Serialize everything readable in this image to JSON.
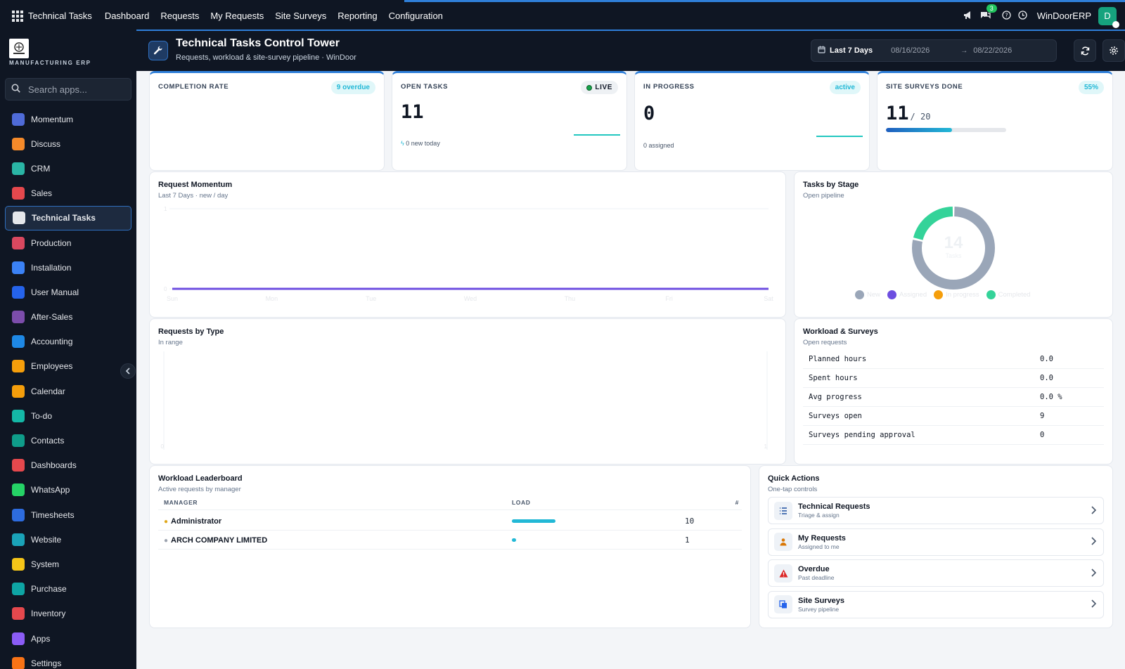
{
  "topbar": {
    "app_name": "Technical Tasks",
    "menu": [
      "Dashboard",
      "Requests",
      "My Requests",
      "Site Surveys",
      "Reporting",
      "Configuration"
    ],
    "messages_badge": "3",
    "company": "WinDoorERP",
    "avatar_letter": "D"
  },
  "sidebar": {
    "logo_text": "MANUFACTURING ERP",
    "search_placeholder": "Search apps...",
    "items": [
      {
        "label": "Momentum",
        "color": "#4f6bd8"
      },
      {
        "label": "Discuss",
        "color": "#f58a2a"
      },
      {
        "label": "CRM",
        "color": "#2ab5a5"
      },
      {
        "label": "Sales",
        "color": "#e5484d"
      },
      {
        "label": "Technical Tasks",
        "color": "#e5e7eb",
        "active": true
      },
      {
        "label": "Production",
        "color": "#d9485f"
      },
      {
        "label": "Installation",
        "color": "#3b82f6"
      },
      {
        "label": "User Manual",
        "color": "#2563eb"
      },
      {
        "label": "After-Sales",
        "color": "#7c4dab"
      },
      {
        "label": "Accounting",
        "color": "#1e88e5"
      },
      {
        "label": "Employees",
        "color": "#f59e0b"
      },
      {
        "label": "Calendar",
        "color": "#f59e0b"
      },
      {
        "label": "To-do",
        "color": "#14b8a6"
      },
      {
        "label": "Contacts",
        "color": "#0f9d8a"
      },
      {
        "label": "Dashboards",
        "color": "#e5484d"
      },
      {
        "label": "WhatsApp",
        "color": "#25d366"
      },
      {
        "label": "Timesheets",
        "color": "#2d6cdf"
      },
      {
        "label": "Website",
        "color": "#1aa3b8"
      },
      {
        "label": "System",
        "color": "#f5c518"
      },
      {
        "label": "Purchase",
        "color": "#0ea5a4"
      },
      {
        "label": "Inventory",
        "color": "#e5484d"
      },
      {
        "label": "Apps",
        "color": "#8b5cf6"
      },
      {
        "label": "Settings",
        "color": "#f97316"
      }
    ]
  },
  "header": {
    "title": "Technical Tasks Control Tower",
    "subtitle": "Requests, workload & site-survey pipeline · WinDoor",
    "range_label": "Last 7 Days",
    "date_from": "08/16/2026",
    "date_arrow": "→",
    "date_to": "08/22/2026"
  },
  "kpis": {
    "completion": {
      "label": "COMPLETION RATE",
      "pill": "9 overdue"
    },
    "open": {
      "label": "OPEN TASKS",
      "pill": "LIVE",
      "value": "11",
      "foot": "0 new today"
    },
    "progress": {
      "label": "IN PROGRESS",
      "pill": "active",
      "value": "0",
      "foot": "0 assigned"
    },
    "surveys": {
      "label": "SITE SURVEYS DONE",
      "pill": "55%",
      "value": "11",
      "total": "/ 20",
      "progress_fraction": 0.55
    }
  },
  "momentum": {
    "title": "Request Momentum",
    "subtitle": "Last 7 Days · new / day"
  },
  "stage": {
    "title": "Tasks by Stage",
    "subtitle": "Open pipeline",
    "center_value": "14",
    "center_label": "Tasks"
  },
  "type_chart": {
    "title": "Requests by Type",
    "subtitle": "In range"
  },
  "workload": {
    "title": "Workload & Surveys",
    "subtitle": "Open requests",
    "rows": [
      {
        "k": "Planned hours",
        "v": "0.0"
      },
      {
        "k": "Spent hours",
        "v": "0.0"
      },
      {
        "k": "Avg progress",
        "v": "0.0 %"
      },
      {
        "k": "Surveys open",
        "v": "9"
      },
      {
        "k": "Surveys pending approval",
        "v": "0"
      }
    ]
  },
  "leaderboard": {
    "title": "Workload Leaderboard",
    "subtitle": "Active requests by manager",
    "col_manager": "MANAGER",
    "col_load": "LOAD",
    "col_count": "#",
    "rows": [
      {
        "name": "Administrator",
        "count": "10",
        "load_fraction": 1.0,
        "medal_color": "#e0a81c"
      },
      {
        "name": "ARCH COMPANY LIMITED",
        "count": "1",
        "load_fraction": 0.1,
        "medal_color": "#9ca3af"
      }
    ]
  },
  "quick_actions": {
    "title": "Quick Actions",
    "subtitle": "One-tap controls",
    "items": [
      {
        "label": "Technical Requests",
        "desc": "Triage & assign",
        "icon": "list-icon",
        "color": "#1e4fa0"
      },
      {
        "label": "My Requests",
        "desc": "Assigned to me",
        "icon": "person-icon",
        "color": "#d97706"
      },
      {
        "label": "Overdue",
        "desc": "Past deadline",
        "icon": "warning-icon",
        "color": "#dc2626"
      },
      {
        "label": "Site Surveys",
        "desc": "Survey pipeline",
        "icon": "documents-icon",
        "color": "#2563eb"
      }
    ]
  },
  "chart_data": [
    {
      "type": "line",
      "title": "Request Momentum",
      "x": [
        "Sun",
        "Mon",
        "Tue",
        "Wed",
        "Thu",
        "Fri",
        "Sat"
      ],
      "series": [
        {
          "values": [
            0,
            0,
            0,
            0,
            0,
            0,
            0
          ]
        }
      ],
      "ylim": [
        0,
        1
      ],
      "yticks": [
        "0",
        "1"
      ],
      "line_color": "#6d4ee0",
      "grid": true
    },
    {
      "type": "pie",
      "title": "Tasks by Stage",
      "categories": [
        "New",
        "Assigned",
        "In progress",
        "Completed"
      ],
      "values": [
        11,
        0,
        0,
        3
      ],
      "colors": [
        "#9aa6b8",
        "#6d4ee0",
        "#f59e0b",
        "#34d399"
      ],
      "legend": "bottom"
    },
    {
      "type": "bar",
      "title": "Requests by Type",
      "categories": [],
      "values": [],
      "yticks": [
        "0",
        "1"
      ]
    }
  ]
}
